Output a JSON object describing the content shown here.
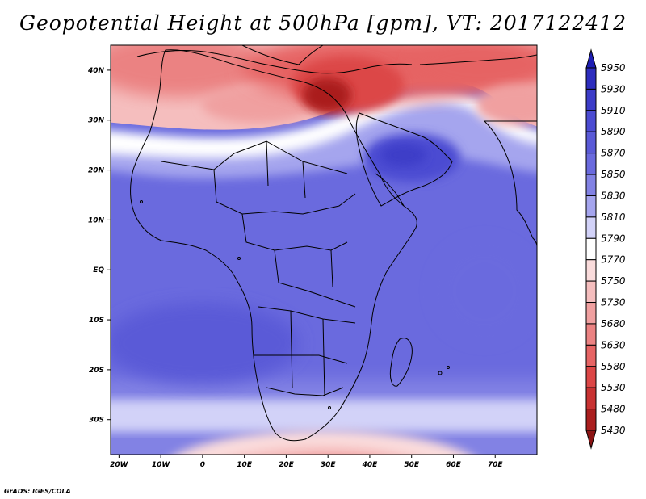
{
  "title": "Geopotential Height at 500hPa [gpm], VT: 2017122412",
  "footer": "GrADS: IGES/COLA",
  "map": {
    "lat_labels": [
      "40N",
      "30N",
      "20N",
      "10N",
      "EQ",
      "10S",
      "20S",
      "30S"
    ],
    "lat_values": [
      40,
      30,
      20,
      10,
      0,
      -10,
      -20,
      -30
    ],
    "lon_labels": [
      "20W",
      "10W",
      "0",
      "10E",
      "20E",
      "30E",
      "40E",
      "50E",
      "60E",
      "70E"
    ],
    "lon_values": [
      -20,
      -10,
      0,
      10,
      20,
      30,
      40,
      50,
      60,
      70
    ],
    "lon_range": [
      -22,
      80
    ],
    "lat_range": [
      -37,
      45
    ]
  },
  "colorbar": {
    "levels": [
      "5950",
      "5930",
      "5910",
      "5890",
      "5870",
      "5850",
      "5830",
      "5810",
      "5790",
      "5770",
      "5750",
      "5730",
      "5680",
      "5630",
      "5580",
      "5530",
      "5480",
      "5430"
    ],
    "colors": [
      "#1e1eb4",
      "#2d2dbe",
      "#3c3cc8",
      "#4b4bd2",
      "#5a5ad7",
      "#6a6ade",
      "#8282e4",
      "#a5a5ee",
      "#d2d2f8",
      "#ffffff",
      "#fadcdc",
      "#f5bebe",
      "#f0a0a0",
      "#eb8282",
      "#e66464",
      "#dc4646",
      "#c83232",
      "#aa1e1e",
      "#8c1414"
    ]
  }
}
